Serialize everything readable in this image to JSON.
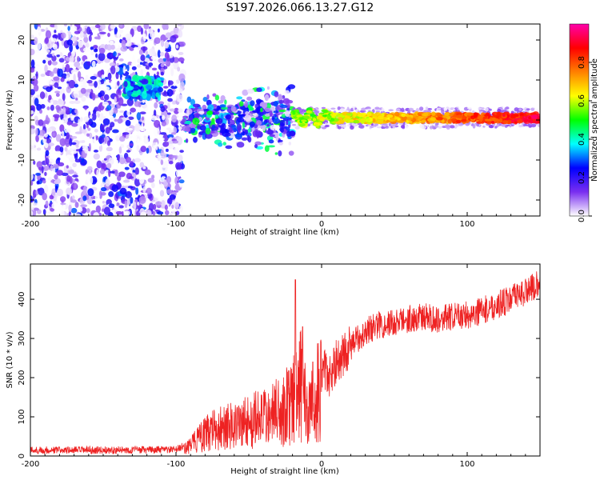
{
  "title": "S197.2026.066.13.27.G12",
  "chart_data": [
    {
      "type": "heatmap",
      "name": "spectrogram",
      "xlabel": "Height of straight line (km)",
      "ylabel": "Frequency (Hz)",
      "xlim": [
        -200,
        150
      ],
      "ylim": [
        -24,
        24
      ],
      "x_ticks": [
        -200,
        -100,
        0,
        100
      ],
      "x_tick_labels": [
        "-200",
        "-100",
        "0",
        "100"
      ],
      "y_ticks": [
        -20,
        -10,
        0,
        10,
        20
      ],
      "y_tick_labels": [
        "-20",
        "-10",
        "0",
        "10",
        "20"
      ],
      "colorbar": {
        "label": "Normalized spectral amplitude",
        "range": [
          0,
          1
        ],
        "ticks": [
          0.0,
          0.2,
          0.4,
          0.6,
          0.8
        ],
        "tick_labels": [
          "0.0",
          "0.2",
          "0.4",
          "0.6",
          "0.8"
        ],
        "colors": [
          "#ffffff",
          "#7a2ff0",
          "#0000ff",
          "#00ffff",
          "#00ff00",
          "#ffff00",
          "#ff8000",
          "#ff0000",
          "#ff00aa"
        ]
      },
      "features": [
        {
          "description": "noise",
          "x_range": [
            -200,
            -95
          ],
          "f_range": [
            -24,
            24
          ],
          "amp_range": [
            0.0,
            0.3
          ]
        },
        {
          "description": "cluster",
          "x_range": [
            -135,
            -110
          ],
          "f_center": 8,
          "amp_range": [
            0.2,
            0.45
          ]
        },
        {
          "description": "scatter",
          "x_range": [
            -95,
            -20
          ],
          "f_range": [
            -9,
            9
          ],
          "amp_range": [
            0.2,
            0.5
          ]
        },
        {
          "description": "signal line",
          "x_range": [
            -20,
            150
          ],
          "f_center": 0.5,
          "amp_range": [
            0.3,
            0.95
          ]
        }
      ]
    },
    {
      "type": "line",
      "name": "snr",
      "xlabel": "Height of straight line (km)",
      "ylabel": "SNR (10 * v/v)",
      "xlim": [
        -200,
        150
      ],
      "ylim": [
        0,
        490
      ],
      "x_ticks": [
        -200,
        -100,
        0,
        100
      ],
      "x_tick_labels": [
        "-200",
        "-100",
        "0",
        "100"
      ],
      "y_ticks": [
        0,
        100,
        200,
        300,
        400
      ],
      "y_tick_labels": [
        "0",
        "100",
        "200",
        "300",
        "400"
      ],
      "color": "#ee2222",
      "series": [
        {
          "name": "SNR",
          "x": [
            -200,
            -150,
            -100,
            -90,
            -80,
            -70,
            -60,
            -50,
            -40,
            -30,
            -20,
            -15,
            -12,
            -8,
            -5,
            0,
            5,
            10,
            20,
            30,
            40,
            50,
            60,
            70,
            80,
            90,
            100,
            110,
            120,
            130,
            140,
            150
          ],
          "values": [
            15,
            15,
            16,
            35,
            70,
            90,
            100,
            110,
            120,
            140,
            170,
            230,
            200,
            130,
            180,
            230,
            200,
            240,
            280,
            320,
            335,
            340,
            350,
            355,
            350,
            355,
            360,
            370,
            385,
            400,
            420,
            440
          ]
        }
      ],
      "spikes": [
        {
          "x": -18,
          "value": 450
        },
        {
          "x": -13,
          "value": 330
        },
        {
          "x": -6,
          "value": 240
        },
        {
          "x": 8,
          "value": 210
        }
      ]
    }
  ]
}
